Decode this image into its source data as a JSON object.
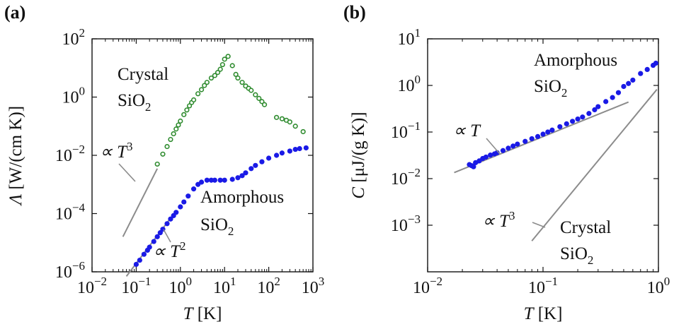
{
  "colors": {
    "crystal": "#2e8b2e",
    "amorphous": "#1a1ae6",
    "guide": "#8c8c8c",
    "axis": "#111111"
  },
  "chart_data": [
    {
      "panel": "(a)",
      "type": "scatter",
      "xscale": "log",
      "yscale": "log",
      "xlim": [
        0.01,
        1000
      ],
      "ylim": [
        1e-06,
        100
      ],
      "xticks": [
        0.01,
        0.1,
        1,
        10,
        100,
        1000
      ],
      "yticks": [
        1e-06,
        0.0001,
        0.01,
        1,
        100
      ],
      "xlabel": {
        "var": "T",
        "unit": " [K]"
      },
      "ylabel": {
        "var": "Λ",
        "unit": " [W/(cm K)]"
      },
      "series": [
        {
          "name": "Crystal SiO2",
          "marker": "open-circle",
          "color": "#2e8b2e",
          "x": [
            0.3,
            0.4,
            0.5,
            0.6,
            0.7,
            0.8,
            0.9,
            1.0,
            1.2,
            1.4,
            1.6,
            1.8,
            2.0,
            2.5,
            3.0,
            3.5,
            4.0,
            5.0,
            6.0,
            7.0,
            8.0,
            9.0,
            10,
            12,
            15,
            18,
            20,
            25,
            30,
            35,
            40,
            50,
            60,
            70,
            80,
            150,
            200,
            250,
            300,
            400,
            600
          ],
          "y": [
            0.005,
            0.011,
            0.02,
            0.035,
            0.055,
            0.08,
            0.11,
            0.15,
            0.25,
            0.36,
            0.5,
            0.65,
            0.8,
            1.3,
            1.8,
            2.5,
            3.2,
            4.5,
            5.5,
            7,
            9,
            13,
            20,
            25,
            12,
            6,
            4.5,
            3.2,
            2.4,
            2,
            1.7,
            1.2,
            0.9,
            0.7,
            0.55,
            0.2,
            0.18,
            0.16,
            0.14,
            0.1,
            0.065
          ]
        },
        {
          "name": "Amorphous SiO2",
          "marker": "filled-circle",
          "color": "#1a1ae6",
          "x": [
            0.1,
            0.12,
            0.15,
            0.18,
            0.2,
            0.25,
            0.3,
            0.35,
            0.4,
            0.5,
            0.6,
            0.7,
            0.8,
            1,
            1.2,
            1.5,
            2,
            2.5,
            3,
            4,
            5,
            6,
            8,
            10,
            15,
            20,
            25,
            30,
            40,
            50,
            70,
            100,
            150,
            200,
            300,
            400,
            500,
            700
          ],
          "y": [
            1.8e-06,
            2.5e-06,
            4e-06,
            5.5e-06,
            7e-06,
            1.1e-05,
            1.6e-05,
            2.2e-05,
            2.9e-05,
            4.5e-05,
            6.5e-05,
            8.5e-05,
            0.00011,
            0.00017,
            0.00025,
            0.0004,
            0.0007,
            0.001,
            0.0012,
            0.0014,
            0.0014,
            0.0014,
            0.0014,
            0.0014,
            0.0015,
            0.0017,
            0.002,
            0.0025,
            0.0035,
            0.0045,
            0.006,
            0.008,
            0.01,
            0.012,
            0.014,
            0.016,
            0.017,
            0.018
          ]
        }
      ],
      "guides": [
        {
          "label": "∝ T3",
          "slope": 3,
          "x": [
            0.05,
            0.3
          ],
          "y": [
            1.6e-05,
            0.0035
          ]
        },
        {
          "label": "∝ T2",
          "slope": 2,
          "x": [
            0.06,
            0.6
          ],
          "y": [
            7e-07,
            7e-05
          ]
        }
      ],
      "annotations": [
        {
          "text": "Crystal",
          "sub": ""
        },
        {
          "text": "SiO",
          "sub": "2"
        },
        {
          "text": "Amorphous",
          "sub": ""
        },
        {
          "text": "SiO",
          "sub": "2"
        },
        {
          "text": "∝ T",
          "sup": "3"
        },
        {
          "text": "∝ T",
          "sup": "2"
        }
      ]
    },
    {
      "panel": "(b)",
      "type": "scatter",
      "xscale": "log",
      "yscale": "log",
      "xlim": [
        0.01,
        1
      ],
      "ylim": [
        0.0001,
        10
      ],
      "xticks": [
        0.01,
        0.1,
        1
      ],
      "yticks": [
        0.001,
        0.01,
        0.1,
        1,
        10
      ],
      "xlabel": {
        "var": "T",
        "unit": " [K]"
      },
      "ylabel": {
        "var": "C",
        "unit": " [μJ/(g K)]"
      },
      "series": [
        {
          "name": "Amorphous SiO2",
          "marker": "filled-circle",
          "color": "#1a1ae6",
          "x": [
            0.023,
            0.024,
            0.025,
            0.026,
            0.028,
            0.03,
            0.032,
            0.035,
            0.038,
            0.04,
            0.045,
            0.05,
            0.055,
            0.06,
            0.07,
            0.08,
            0.09,
            0.1,
            0.11,
            0.12,
            0.14,
            0.16,
            0.18,
            0.2,
            0.22,
            0.25,
            0.28,
            0.3,
            0.35,
            0.4,
            0.45,
            0.5,
            0.55,
            0.6,
            0.7,
            0.8,
            0.9,
            0.95
          ],
          "y": [
            0.02,
            0.019,
            0.018,
            0.022,
            0.024,
            0.027,
            0.029,
            0.032,
            0.034,
            0.036,
            0.04,
            0.045,
            0.05,
            0.055,
            0.063,
            0.072,
            0.08,
            0.09,
            0.1,
            0.11,
            0.13,
            0.15,
            0.17,
            0.19,
            0.21,
            0.25,
            0.3,
            0.35,
            0.45,
            0.55,
            0.7,
            0.95,
            1.1,
            1.3,
            1.8,
            2.2,
            2.7,
            3.0
          ]
        }
      ],
      "guides": [
        {
          "label": "∝ T",
          "slope": 1,
          "x": [
            0.017,
            0.55
          ],
          "y": [
            0.0135,
            0.44
          ]
        },
        {
          "label": "∝ T3",
          "slope": 3,
          "x": [
            0.08,
            0.97
          ],
          "y": [
            0.00046,
            0.82
          ]
        }
      ],
      "annotations": [
        {
          "text": "Amorphous",
          "sub": ""
        },
        {
          "text": "SiO",
          "sub": "2"
        },
        {
          "text": "Crystal",
          "sub": ""
        },
        {
          "text": "SiO",
          "sub": "2"
        },
        {
          "text": "∝ T",
          "sup": ""
        },
        {
          "text": "∝ T",
          "sup": "3"
        }
      ]
    }
  ]
}
